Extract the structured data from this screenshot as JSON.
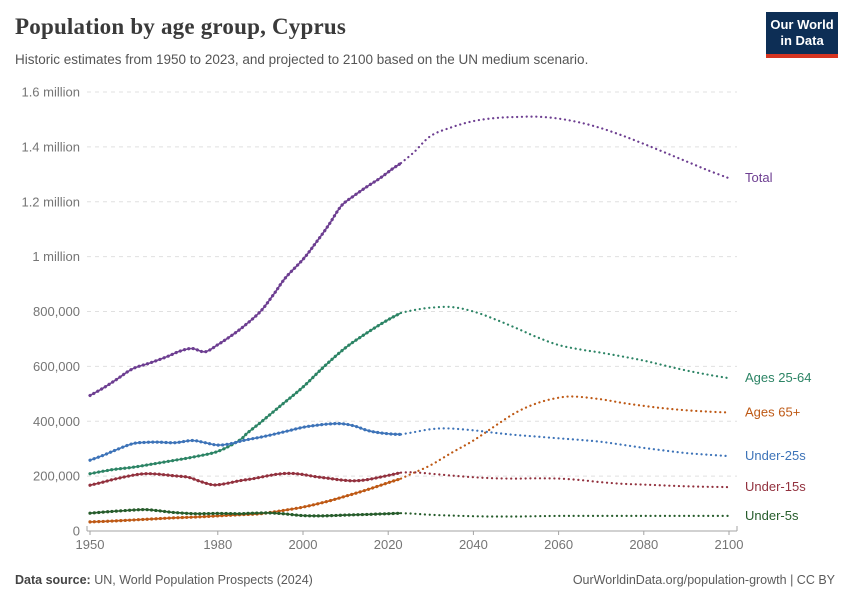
{
  "header": {
    "title": "Population by age group, Cyprus",
    "subtitle": "Historic estimates from 1950 to 2023, and projected to 2100 based on the UN medium scenario.",
    "logo": {
      "line1": "Our World",
      "line2": "in Data"
    }
  },
  "chart_data": {
    "type": "line",
    "title": "Population by age group, Cyprus",
    "xlabel": "",
    "ylabel": "",
    "x_range": [
      1950,
      2100
    ],
    "y_range": [
      0,
      1600000
    ],
    "x_ticks": [
      1950,
      1980,
      2000,
      2020,
      2040,
      2060,
      2080,
      2100
    ],
    "y_ticks": [
      {
        "v": 0,
        "label": "0"
      },
      {
        "v": 200000,
        "label": "200,000"
      },
      {
        "v": 400000,
        "label": "400,000"
      },
      {
        "v": 600000,
        "label": "600,000"
      },
      {
        "v": 800000,
        "label": "800,000"
      },
      {
        "v": 1000000,
        "label": "1 million"
      },
      {
        "v": 1200000,
        "label": "1.2 million"
      },
      {
        "v": 1400000,
        "label": "1.4 million"
      },
      {
        "v": 1600000,
        "label": "1.6 million"
      }
    ],
    "grid": true,
    "legend_position": "right-of-line-ends",
    "projection_start_year": 2023,
    "style_note": "solid beaded line = historic estimate, dotted line = projection",
    "series": [
      {
        "name": "Total",
        "color": "#6D3E91",
        "historic": [
          [
            1950,
            494000
          ],
          [
            1953,
            520000
          ],
          [
            1956,
            550000
          ],
          [
            1960,
            591000
          ],
          [
            1964,
            612000
          ],
          [
            1968,
            635000
          ],
          [
            1971,
            655000
          ],
          [
            1974,
            665000
          ],
          [
            1977,
            653000
          ],
          [
            1980,
            679000
          ],
          [
            1983,
            710000
          ],
          [
            1986,
            745000
          ],
          [
            1990,
            800000
          ],
          [
            1993,
            860000
          ],
          [
            1996,
            925000
          ],
          [
            2000,
            990000
          ],
          [
            2003,
            1050000
          ],
          [
            2006,
            1115000
          ],
          [
            2009,
            1185000
          ],
          [
            2012,
            1222000
          ],
          [
            2015,
            1255000
          ],
          [
            2018,
            1285000
          ],
          [
            2021,
            1320000
          ],
          [
            2023,
            1341000
          ]
        ],
        "projected": [
          [
            2026,
            1380000
          ],
          [
            2030,
            1440000
          ],
          [
            2035,
            1472000
          ],
          [
            2040,
            1494000
          ],
          [
            2045,
            1505000
          ],
          [
            2050,
            1509000
          ],
          [
            2055,
            1510000
          ],
          [
            2060,
            1503000
          ],
          [
            2065,
            1489000
          ],
          [
            2070,
            1468000
          ],
          [
            2075,
            1441000
          ],
          [
            2080,
            1411000
          ],
          [
            2085,
            1379000
          ],
          [
            2090,
            1347000
          ],
          [
            2095,
            1315000
          ],
          [
            2100,
            1286000
          ]
        ]
      },
      {
        "name": "Ages 25-64",
        "color": "#2C8465",
        "historic": [
          [
            1950,
            209000
          ],
          [
            1955,
            223000
          ],
          [
            1960,
            232000
          ],
          [
            1965,
            245000
          ],
          [
            1970,
            258000
          ],
          [
            1975,
            272000
          ],
          [
            1980,
            290000
          ],
          [
            1985,
            330000
          ],
          [
            1987,
            358000
          ],
          [
            1990,
            395000
          ],
          [
            1995,
            460000
          ],
          [
            2000,
            525000
          ],
          [
            2005,
            600000
          ],
          [
            2010,
            668000
          ],
          [
            2015,
            722000
          ],
          [
            2020,
            770000
          ],
          [
            2023,
            795000
          ]
        ],
        "projected": [
          [
            2026,
            805000
          ],
          [
            2030,
            814000
          ],
          [
            2035,
            816000
          ],
          [
            2040,
            800000
          ],
          [
            2045,
            772000
          ],
          [
            2050,
            740000
          ],
          [
            2055,
            706000
          ],
          [
            2060,
            678000
          ],
          [
            2065,
            662000
          ],
          [
            2070,
            650000
          ],
          [
            2075,
            636000
          ],
          [
            2080,
            621000
          ],
          [
            2085,
            603000
          ],
          [
            2090,
            585000
          ],
          [
            2095,
            570000
          ],
          [
            2100,
            557000
          ]
        ]
      },
      {
        "name": "Ages 65+",
        "color": "#BE5915",
        "historic": [
          [
            1950,
            33000
          ],
          [
            1955,
            36000
          ],
          [
            1960,
            40000
          ],
          [
            1965,
            44000
          ],
          [
            1970,
            48000
          ],
          [
            1975,
            51000
          ],
          [
            1980,
            55000
          ],
          [
            1985,
            59000
          ],
          [
            1990,
            63000
          ],
          [
            1995,
            74000
          ],
          [
            2000,
            87000
          ],
          [
            2005,
            105000
          ],
          [
            2010,
            127000
          ],
          [
            2015,
            150000
          ],
          [
            2020,
            176000
          ],
          [
            2023,
            191000
          ]
        ],
        "projected": [
          [
            2026,
            212000
          ],
          [
            2030,
            240000
          ],
          [
            2035,
            286000
          ],
          [
            2040,
            330000
          ],
          [
            2045,
            382000
          ],
          [
            2050,
            432000
          ],
          [
            2055,
            466000
          ],
          [
            2060,
            486000
          ],
          [
            2064,
            490000
          ],
          [
            2070,
            480000
          ],
          [
            2075,
            467000
          ],
          [
            2080,
            456000
          ],
          [
            2085,
            447000
          ],
          [
            2090,
            440000
          ],
          [
            2095,
            435000
          ],
          [
            2100,
            432000
          ]
        ]
      },
      {
        "name": "Under-25s",
        "color": "#3D73B8",
        "historic": [
          [
            1950,
            258000
          ],
          [
            1953,
            275000
          ],
          [
            1956,
            295000
          ],
          [
            1960,
            318000
          ],
          [
            1963,
            323000
          ],
          [
            1966,
            324000
          ],
          [
            1970,
            322000
          ],
          [
            1974,
            330000
          ],
          [
            1977,
            322000
          ],
          [
            1980,
            313000
          ],
          [
            1983,
            318000
          ],
          [
            1986,
            330000
          ],
          [
            1990,
            342000
          ],
          [
            1993,
            352000
          ],
          [
            1996,
            363000
          ],
          [
            2000,
            378000
          ],
          [
            2003,
            385000
          ],
          [
            2006,
            390000
          ],
          [
            2009,
            391000
          ],
          [
            2012,
            383000
          ],
          [
            2015,
            367000
          ],
          [
            2018,
            358000
          ],
          [
            2021,
            353000
          ],
          [
            2023,
            352000
          ]
        ],
        "projected": [
          [
            2026,
            360000
          ],
          [
            2030,
            371000
          ],
          [
            2034,
            374000
          ],
          [
            2040,
            367000
          ],
          [
            2045,
            358000
          ],
          [
            2050,
            350000
          ],
          [
            2055,
            344000
          ],
          [
            2060,
            338000
          ],
          [
            2065,
            332000
          ],
          [
            2070,
            325000
          ],
          [
            2075,
            314000
          ],
          [
            2080,
            303000
          ],
          [
            2085,
            293000
          ],
          [
            2090,
            284000
          ],
          [
            2095,
            278000
          ],
          [
            2100,
            273000
          ]
        ]
      },
      {
        "name": "Under-15s",
        "color": "#92313E",
        "historic": [
          [
            1950,
            167000
          ],
          [
            1953,
            178000
          ],
          [
            1956,
            190000
          ],
          [
            1960,
            203000
          ],
          [
            1963,
            209000
          ],
          [
            1966,
            207000
          ],
          [
            1970,
            201000
          ],
          [
            1973,
            196000
          ],
          [
            1976,
            180000
          ],
          [
            1979,
            168000
          ],
          [
            1982,
            173000
          ],
          [
            1985,
            183000
          ],
          [
            1988,
            190000
          ],
          [
            1991,
            199000
          ],
          [
            1994,
            207000
          ],
          [
            1997,
            210000
          ],
          [
            2000,
            206000
          ],
          [
            2003,
            198000
          ],
          [
            2006,
            192000
          ],
          [
            2009,
            186000
          ],
          [
            2012,
            183000
          ],
          [
            2015,
            187000
          ],
          [
            2018,
            196000
          ],
          [
            2021,
            206000
          ],
          [
            2023,
            213000
          ]
        ],
        "projected": [
          [
            2026,
            214000
          ],
          [
            2030,
            209000
          ],
          [
            2035,
            202000
          ],
          [
            2040,
            196000
          ],
          [
            2045,
            192000
          ],
          [
            2050,
            191000
          ],
          [
            2055,
            192000
          ],
          [
            2060,
            191000
          ],
          [
            2065,
            186000
          ],
          [
            2070,
            178000
          ],
          [
            2075,
            172000
          ],
          [
            2080,
            169000
          ],
          [
            2085,
            166000
          ],
          [
            2090,
            163000
          ],
          [
            2095,
            161000
          ],
          [
            2100,
            160000
          ]
        ]
      },
      {
        "name": "Under-5s",
        "color": "#265C2B",
        "historic": [
          [
            1950,
            65000
          ],
          [
            1955,
            71000
          ],
          [
            1960,
            76000
          ],
          [
            1963,
            78000
          ],
          [
            1966,
            74000
          ],
          [
            1970,
            67000
          ],
          [
            1975,
            63000
          ],
          [
            1980,
            64000
          ],
          [
            1985,
            63000
          ],
          [
            1988,
            65000
          ],
          [
            1992,
            66000
          ],
          [
            1996,
            62000
          ],
          [
            2000,
            56000
          ],
          [
            2004,
            55000
          ],
          [
            2008,
            57000
          ],
          [
            2012,
            59000
          ],
          [
            2016,
            61000
          ],
          [
            2020,
            63000
          ],
          [
            2023,
            65000
          ]
        ],
        "projected": [
          [
            2026,
            63000
          ],
          [
            2030,
            59000
          ],
          [
            2035,
            56000
          ],
          [
            2040,
            54000
          ],
          [
            2045,
            53000
          ],
          [
            2050,
            53000
          ],
          [
            2055,
            54000
          ],
          [
            2060,
            55000
          ],
          [
            2070,
            55000
          ],
          [
            2080,
            55000
          ],
          [
            2090,
            55000
          ],
          [
            2100,
            55000
          ]
        ]
      }
    ]
  },
  "footer": {
    "source_label": "Data source:",
    "source_text": " UN, World Population Prospects (2024)",
    "link_text": "OurWorldinData.org/population-growth",
    "separator": " | ",
    "license_text": "CC BY"
  }
}
